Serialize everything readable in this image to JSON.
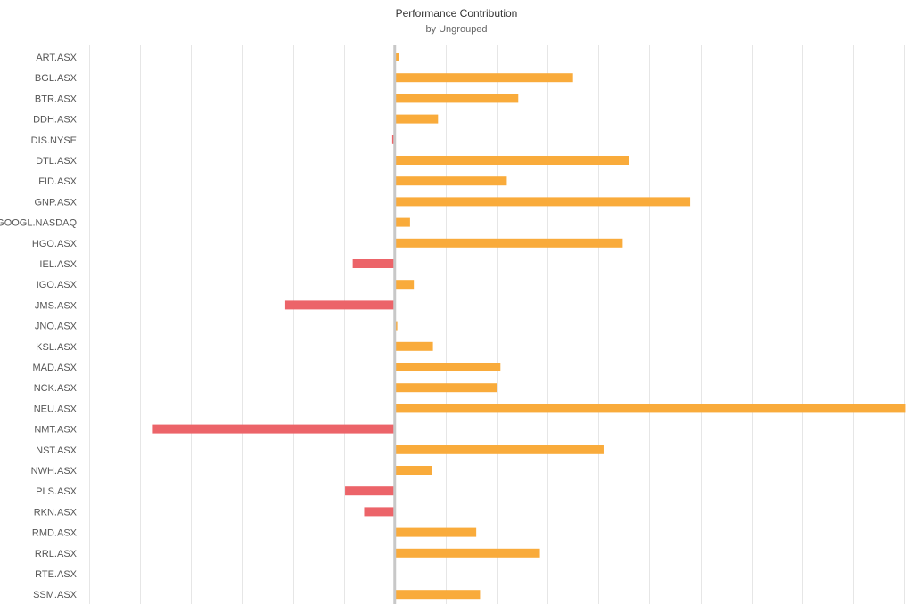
{
  "chart_data": {
    "type": "bar",
    "orientation": "horizontal",
    "title": "Performance Contribution",
    "subtitle": "by Ungrouped",
    "categories": [
      "ART.ASX",
      "BGL.ASX",
      "BTR.ASX",
      "DDH.ASX",
      "DIS.NYSE",
      "DTL.ASX",
      "FID.ASX",
      "GNP.ASX",
      "GOOGL.NASDAQ",
      "HGO.ASX",
      "IEL.ASX",
      "IGO.ASX",
      "JMS.ASX",
      "JNO.ASX",
      "KSL.ASX",
      "MAD.ASX",
      "NCK.ASX",
      "NEU.ASX",
      "NMT.ASX",
      "NST.ASX",
      "NWH.ASX",
      "PLS.ASX",
      "RKN.ASX",
      "RMD.ASX",
      "RRL.ASX",
      "RTE.ASX",
      "SSM.ASX"
    ],
    "values": [
      0.15,
      7.0,
      4.85,
      1.7,
      -0.1,
      9.2,
      4.4,
      11.6,
      0.6,
      8.95,
      -1.65,
      0.75,
      -4.3,
      0.1,
      1.5,
      4.15,
      4.0,
      20.05,
      -9.5,
      8.2,
      1.45,
      -1.95,
      -1.2,
      3.2,
      5.7,
      0.0,
      3.35
    ],
    "xlim": [
      -12,
      20
    ],
    "grid": true,
    "colors": {
      "positive": "#f9ab3b",
      "negative": "#ec6469",
      "grid": "#e6e6e6",
      "zero_line": "#c8c8c8"
    }
  }
}
